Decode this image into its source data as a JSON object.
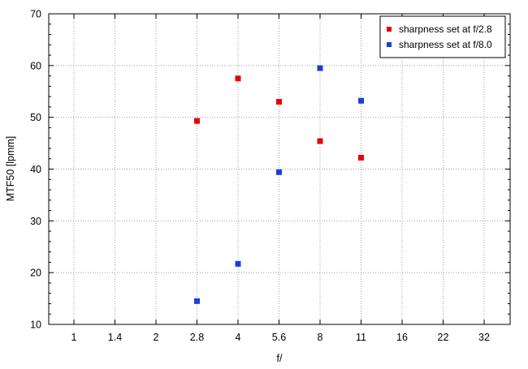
{
  "chart_data": {
    "type": "scatter",
    "xlabel": "f/",
    "ylabel": "MTF50 [lpmm]",
    "ylim": [
      10,
      70
    ],
    "y_ticks": [
      10,
      20,
      30,
      40,
      50,
      60,
      70
    ],
    "x_scale": "log",
    "x_ticks": [
      "1",
      "1.4",
      "2",
      "2.8",
      "4",
      "5.6",
      "8",
      "11",
      "16",
      "22",
      "32"
    ],
    "grid": true,
    "legend_position": "top-right",
    "series": [
      {
        "name": "sharpness set at f/2.8",
        "color": "#e8000b",
        "points": [
          {
            "x": "2.8",
            "y": 49.3
          },
          {
            "x": "4",
            "y": 57.5
          },
          {
            "x": "5.6",
            "y": 53.0
          },
          {
            "x": "8",
            "y": 45.4
          },
          {
            "x": "11",
            "y": 42.2
          }
        ]
      },
      {
        "name": "sharpness set at f/8.0",
        "color": "#1a3fd6",
        "points": [
          {
            "x": "2.8",
            "y": 14.5
          },
          {
            "x": "4",
            "y": 21.7
          },
          {
            "x": "5.6",
            "y": 39.4
          },
          {
            "x": "8",
            "y": 59.5
          },
          {
            "x": "11",
            "y": 53.2
          }
        ]
      }
    ]
  }
}
